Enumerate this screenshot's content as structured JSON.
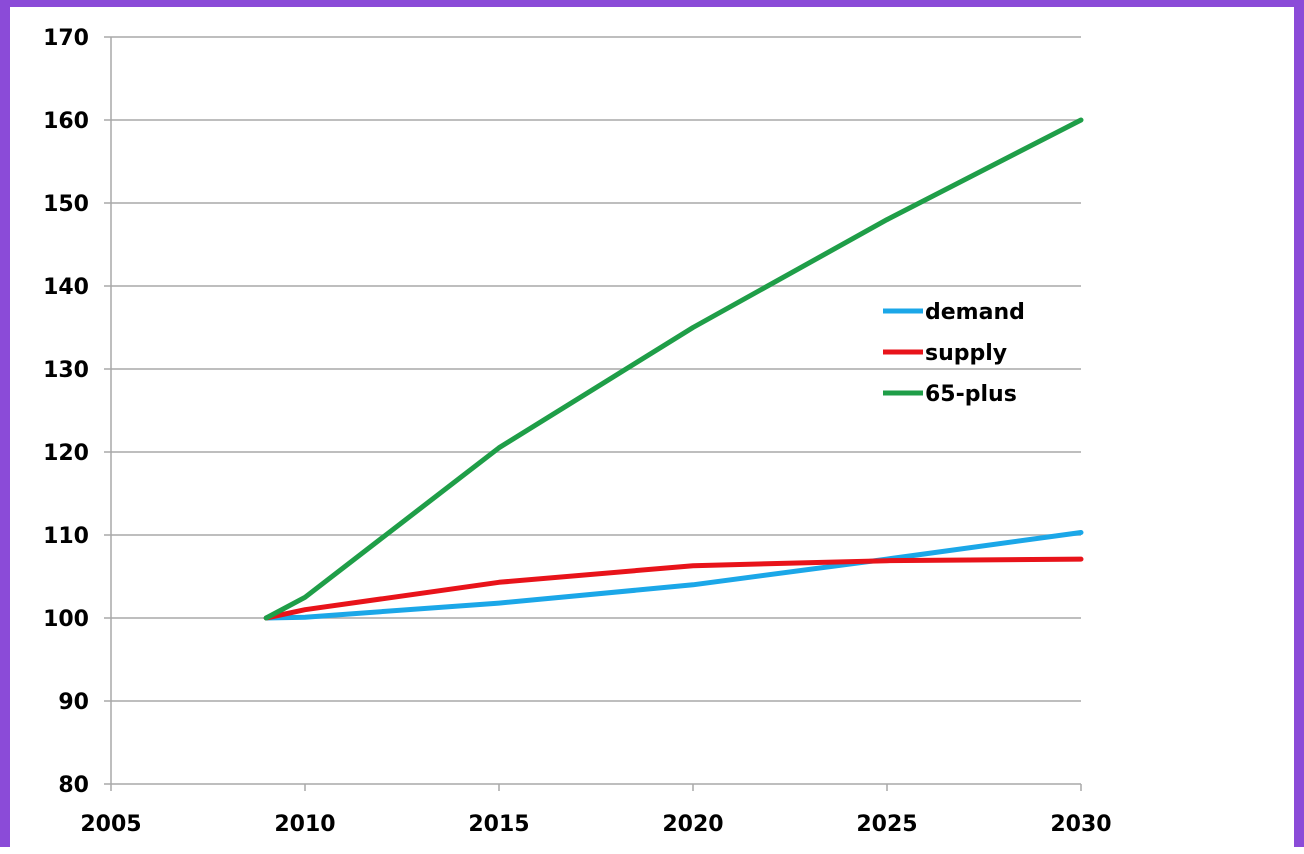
{
  "chart_data": {
    "type": "line",
    "title": "",
    "xlabel": "",
    "ylabel": "",
    "xlim": [
      2005,
      2030
    ],
    "ylim": [
      80,
      170
    ],
    "x_ticks": [
      "2005",
      "2010",
      "2015",
      "2020",
      "2025",
      "2030"
    ],
    "y_ticks": [
      "80",
      "90",
      "100",
      "110",
      "120",
      "130",
      "140",
      "150",
      "160",
      "170"
    ],
    "grid": "horizontal",
    "legend_position": "right-middle",
    "series": [
      {
        "name": "demand",
        "color": "#1ba7e8",
        "x": [
          2009,
          2010,
          2015,
          2020,
          2025,
          2030
        ],
        "values": [
          100,
          100.1,
          101.8,
          104.0,
          107.1,
          110.3
        ]
      },
      {
        "name": "supply",
        "color": "#e8131a",
        "x": [
          2009,
          2010,
          2015,
          2020,
          2025,
          2030
        ],
        "values": [
          100,
          101.0,
          104.3,
          106.3,
          106.9,
          107.1
        ]
      },
      {
        "name": "65-plus",
        "color": "#1f9e48",
        "x": [
          2009,
          2010,
          2015,
          2020,
          2025,
          2030
        ],
        "values": [
          100,
          102.5,
          120.5,
          135.0,
          148.0,
          160.0
        ]
      }
    ]
  }
}
